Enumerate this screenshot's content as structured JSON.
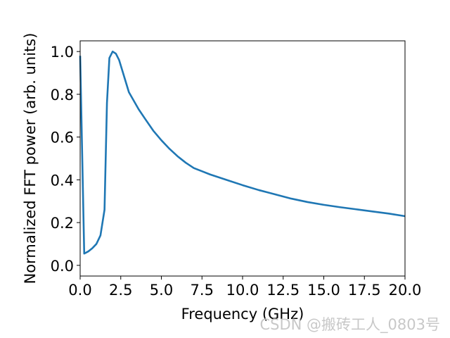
{
  "chart_data": {
    "type": "line",
    "title": "",
    "xlabel": "Frequency  (GHz)",
    "ylabel": "Normalized  FFT  power  (arb. units)",
    "xlim": [
      0,
      20
    ],
    "ylim": [
      -0.05,
      1.05
    ],
    "xticks": [
      0,
      2.5,
      5,
      7.5,
      10,
      12.5,
      15,
      17.5,
      20
    ],
    "xtick_labels": [
      "0.0",
      "2.5",
      "5.0",
      "7.5",
      "10.0",
      "12.5",
      "15.0",
      "17.5",
      "20.0"
    ],
    "yticks": [
      0,
      0.2,
      0.4,
      0.6,
      0.8,
      1.0
    ],
    "ytick_labels": [
      "0.0",
      "0.2",
      "0.4",
      "0.6",
      "0.8",
      "1.0"
    ],
    "grid": false,
    "series": [
      {
        "color": "#1f77b4",
        "x": [
          0,
          0.25,
          0.5,
          0.75,
          1.0,
          1.25,
          1.5,
          1.65,
          1.8,
          2.0,
          2.2,
          2.4,
          2.6,
          2.8,
          3.0,
          3.3,
          3.6,
          4.0,
          4.5,
          5.0,
          5.5,
          6.0,
          6.5,
          7.0,
          7.5,
          8.0,
          9.0,
          10.0,
          11.0,
          12.0,
          13.0,
          14.0,
          15.0,
          16.0,
          17.0,
          18.0,
          19.0,
          20.0
        ],
        "y": [
          0.98,
          0.055,
          0.065,
          0.08,
          0.1,
          0.14,
          0.26,
          0.76,
          0.97,
          1.0,
          0.99,
          0.96,
          0.91,
          0.86,
          0.81,
          0.77,
          0.73,
          0.685,
          0.63,
          0.585,
          0.545,
          0.51,
          0.48,
          0.455,
          0.44,
          0.425,
          0.4,
          0.375,
          0.352,
          0.332,
          0.312,
          0.296,
          0.283,
          0.272,
          0.262,
          0.252,
          0.242,
          0.23
        ]
      }
    ]
  },
  "watermark": "CSDN @搬砖工人_0803号"
}
